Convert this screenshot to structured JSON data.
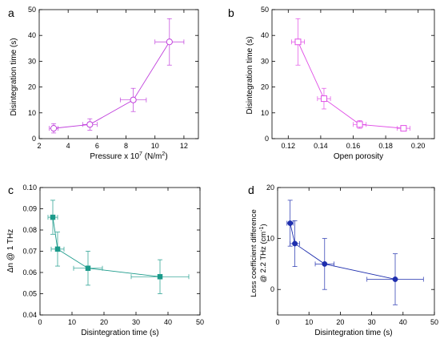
{
  "chart_data": [
    {
      "panel": "a",
      "type": "line",
      "marker": "circle-open",
      "color": "#c03fdc",
      "xlabel": "Pressure x 10",
      "xlabel_sup": "7",
      "xlabel_unit": " (N/m",
      "xlabel_unit_sup": "2",
      "xlabel_end": ")",
      "ylabel": "Disintegration time (s)",
      "xlim": [
        2,
        13
      ],
      "ylim": [
        0,
        50
      ],
      "xticks": [
        "2",
        "4",
        "6",
        "8",
        "10",
        "12"
      ],
      "yticks": [
        "0",
        "10",
        "20",
        "30",
        "40",
        "50"
      ],
      "x": [
        3.0,
        5.5,
        8.5,
        11.0
      ],
      "y": [
        4.0,
        5.5,
        15.0,
        37.5
      ],
      "xerr": [
        0.3,
        0.5,
        0.9,
        1.0
      ],
      "yerr": [
        1.8,
        2.2,
        4.5,
        9.0
      ]
    },
    {
      "panel": "b",
      "type": "line",
      "marker": "square-open",
      "color": "#e04fe6",
      "xlabel": "Open porosity",
      "ylabel": "Disintegration time (s)",
      "xlim": [
        0.11,
        0.21
      ],
      "ylim": [
        0,
        50
      ],
      "xticks": [
        "0.12",
        "0.14",
        "0.16",
        "0.18",
        "0.20"
      ],
      "yticks": [
        "0",
        "10",
        "20",
        "30",
        "40",
        "50"
      ],
      "x": [
        0.126,
        0.142,
        0.164,
        0.191
      ],
      "y": [
        37.5,
        15.5,
        5.5,
        4.0
      ],
      "xerr": [
        0.004,
        0.004,
        0.004,
        0.004
      ],
      "yerr": [
        9.0,
        4.0,
        1.5,
        1.0
      ]
    },
    {
      "panel": "c",
      "type": "line",
      "marker": "square-filled",
      "color": "#1a9a8a",
      "xlabel": "Disintegration time (s)",
      "ylabel": "Δn @ 1 THz",
      "xlim": [
        0,
        50
      ],
      "ylim": [
        0.04,
        0.1
      ],
      "xticks": [
        "0",
        "10",
        "20",
        "30",
        "40",
        "50"
      ],
      "yticks": [
        "0.04",
        "0.05",
        "0.06",
        "0.07",
        "0.08",
        "0.09",
        "0.10"
      ],
      "x": [
        4.0,
        5.5,
        15.0,
        37.5
      ],
      "y": [
        0.086,
        0.071,
        0.062,
        0.058
      ],
      "xerr": [
        1.5,
        2.0,
        4.5,
        9.0
      ],
      "yerr": [
        0.008,
        0.008,
        0.008,
        0.008
      ]
    },
    {
      "panel": "d",
      "type": "line",
      "marker": "circle-filled",
      "color": "#1f2fae",
      "xlabel": "Disintegration time (s)",
      "ylabel_line1": "Loss coefficient difference",
      "ylabel_line2_pre": "@ 2.2 THz (cm",
      "ylabel_line2_sup": "-1",
      "ylabel_line2_end": ")",
      "xlim": [
        0,
        50
      ],
      "ylim": [
        -5,
        20
      ],
      "xticks": [
        "0",
        "10",
        "20",
        "30",
        "40",
        "50"
      ],
      "yticks": [
        "0",
        "10",
        "20"
      ],
      "x": [
        4.0,
        5.5,
        15.0,
        37.5
      ],
      "y": [
        13.0,
        9.0,
        5.0,
        2.0
      ],
      "xerr": [
        1.0,
        1.5,
        3.0,
        9.0
      ],
      "yerr": [
        4.5,
        4.5,
        5.0,
        5.0
      ]
    }
  ]
}
